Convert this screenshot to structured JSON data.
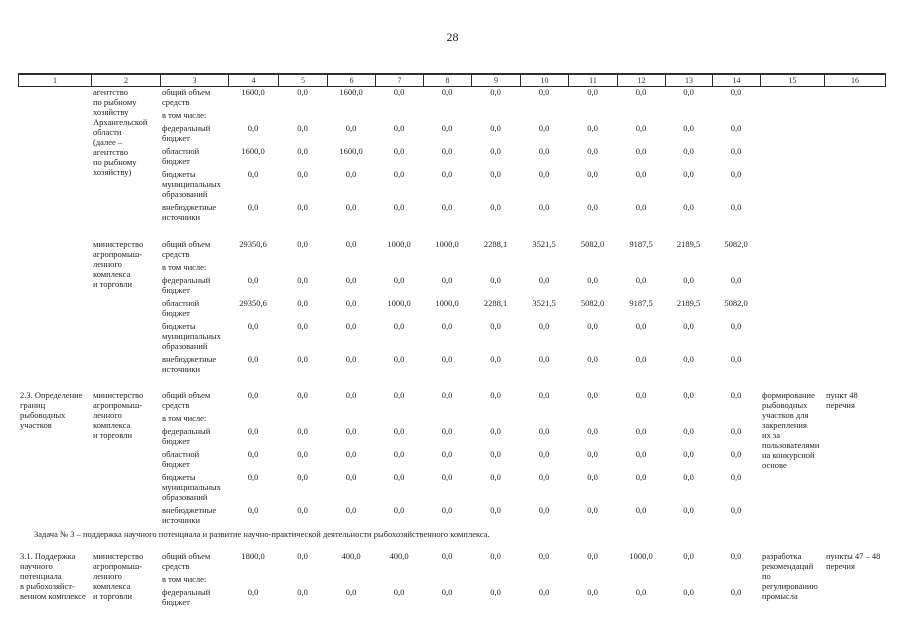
{
  "page": {
    "number": "28"
  },
  "table": {
    "column_numbers": [
      "1",
      "2",
      "3",
      "4",
      "5",
      "6",
      "7",
      "8",
      "9",
      "10",
      "11",
      "12",
      "13",
      "14",
      "15",
      "16"
    ],
    "task_heading": "Задача № 3 – поддержка научного потенциала и развитие научно-практической деятельности рыбохозяйственного комплекса.",
    "blocks": [
      {
        "id": "agency-fisheries",
        "item": "",
        "executor": "агентство\nпо рыбному\nхозяйству\nАрхангельской\nобласти\n(далее –\nагентство\nпо рыбному\nхозяйству)",
        "rows": [
          {
            "label": "общий объем\nсредств",
            "values": [
              "1600,0",
              "0,0",
              "1600,0",
              "0,0",
              "0,0",
              "0,0",
              "0,0",
              "0,0",
              "0,0",
              "0,0",
              "0,0"
            ]
          },
          {
            "label": "в том числе:",
            "values": []
          },
          {
            "label": "федеральный\nбюджет",
            "values": [
              "0,0",
              "0,0",
              "0,0",
              "0,0",
              "0,0",
              "0,0",
              "0,0",
              "0,0",
              "0,0",
              "0,0",
              "0,0"
            ]
          },
          {
            "label": "областной\nбюджет",
            "values": [
              "1600,0",
              "0,0",
              "1600,0",
              "0,0",
              "0,0",
              "0,0",
              "0,0",
              "0,0",
              "0,0",
              "0,0",
              "0,0"
            ]
          },
          {
            "label": "бюджеты\nмуниципальных\nобразований",
            "values": [
              "0,0",
              "0,0",
              "0,0",
              "0,0",
              "0,0",
              "0,0",
              "0,0",
              "0,0",
              "0,0",
              "0,0",
              "0,0"
            ]
          },
          {
            "label": "внебюджетные\nисточники",
            "values": [
              "0,0",
              "0,0",
              "0,0",
              "0,0",
              "0,0",
              "0,0",
              "0,0",
              "0,0",
              "0,0",
              "0,0",
              "0,0"
            ]
          }
        ],
        "result": "",
        "reference": ""
      },
      {
        "id": "ministry-agro",
        "item": "",
        "executor": "министерство\nагропромыш-\nленного\nкомплекса\nи торговли",
        "rows": [
          {
            "label": "общий объем\nсредств",
            "values": [
              "29350,6",
              "0,0",
              "0,0",
              "1000,0",
              "1000,0",
              "2288,1",
              "3521,5",
              "5082,0",
              "9187,5",
              "2189,5",
              "5082,0"
            ]
          },
          {
            "label": "в том числе:",
            "values": []
          },
          {
            "label": "федеральный\nбюджет",
            "values": [
              "0,0",
              "0,0",
              "0,0",
              "0,0",
              "0,0",
              "0,0",
              "0,0",
              "0,0",
              "0,0",
              "0,0",
              "0,0"
            ]
          },
          {
            "label": "областной\nбюджет",
            "values": [
              "29350,6",
              "0,0",
              "0,0",
              "1000,0",
              "1000,0",
              "2288,1",
              "3521,5",
              "5082,0",
              "9187,5",
              "2189,5",
              "5082,0"
            ]
          },
          {
            "label": "бюджеты\nмуниципальных\nобразований",
            "values": [
              "0,0",
              "0,0",
              "0,0",
              "0,0",
              "0,0",
              "0,0",
              "0,0",
              "0,0",
              "0,0",
              "0,0",
              "0,0"
            ]
          },
          {
            "label": "внебюджетные\nисточники",
            "values": [
              "0,0",
              "0,0",
              "0,0",
              "0,0",
              "0,0",
              "0,0",
              "0,0",
              "0,0",
              "0,0",
              "0,0",
              "0,0"
            ]
          }
        ],
        "result": "",
        "reference": ""
      },
      {
        "id": "item-2-3",
        "item": "2.3. Определение\nграниц\nрыбоводных\nучастков",
        "executor": "министерство\nагропромыш-\nленного\nкомплекса\nи торговли",
        "rows": [
          {
            "label": "общий объем\nсредств",
            "values": [
              "0,0",
              "0,0",
              "0,0",
              "0,0",
              "0,0",
              "0,0",
              "0,0",
              "0,0",
              "0,0",
              "0,0",
              "0,0"
            ]
          },
          {
            "label": "в том числе:",
            "values": []
          },
          {
            "label": "федеральный\nбюджет",
            "values": [
              "0,0",
              "0,0",
              "0,0",
              "0,0",
              "0,0",
              "0,0",
              "0,0",
              "0,0",
              "0,0",
              "0,0",
              "0,0"
            ]
          },
          {
            "label": "областной\nбюджет",
            "values": [
              "0,0",
              "0,0",
              "0,0",
              "0,0",
              "0,0",
              "0,0",
              "0,0",
              "0,0",
              "0,0",
              "0,0",
              "0,0"
            ]
          },
          {
            "label": "бюджеты\nмуниципальных\nобразований",
            "values": [
              "0,0",
              "0,0",
              "0,0",
              "0,0",
              "0,0",
              "0,0",
              "0,0",
              "0,0",
              "0,0",
              "0,0",
              "0,0"
            ]
          },
          {
            "label": "внебюджетные\nисточники",
            "values": [
              "0,0",
              "0,0",
              "0,0",
              "0,0",
              "0,0",
              "0,0",
              "0,0",
              "0,0",
              "0,0",
              "0,0",
              "0,0"
            ]
          }
        ],
        "result": "формирование\nрыбоводных\nучастков для\nзакрепления\nих за\nпользователями\nна конкурсной\nоснове",
        "reference": "пункт 48\nперечня"
      },
      {
        "id": "item-3-1",
        "item": "3.1. Поддержка\nнаучного\nпотенциала\nв рыбохозяйст-\nвенном комплексе",
        "executor": "министерство\nагропромыш-\nленного\nкомплекса\nи торговли",
        "rows": [
          {
            "label": "общий объем\nсредств",
            "values": [
              "1800,0",
              "0,0",
              "400,0",
              "400,0",
              "0,0",
              "0,0",
              "0,0",
              "0,0",
              "1000,0",
              "0,0",
              "0,0"
            ]
          },
          {
            "label": "в том числе:",
            "values": []
          },
          {
            "label": "федеральный\nбюджет",
            "values": [
              "0,0",
              "0,0",
              "0,0",
              "0,0",
              "0,0",
              "0,0",
              "0,0",
              "0,0",
              "0,0",
              "0,0",
              "0,0"
            ]
          }
        ],
        "result": "разработка\nрекомендаций\nпо\nрегулированию\nпромысла",
        "reference": "пункты 47 – 48\nперечня"
      }
    ]
  }
}
